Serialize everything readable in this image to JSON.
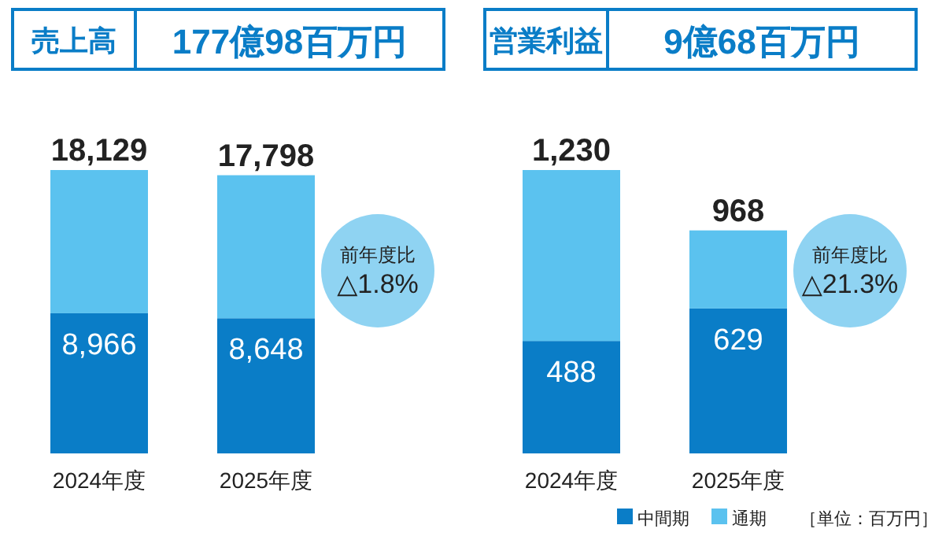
{
  "chart_data": [
    {
      "type": "bar",
      "stacked": true,
      "title": "売上高",
      "subtitle": "177億98百万円",
      "categories": [
        "2024年度",
        "2025年度"
      ],
      "series": [
        {
          "color": "#0a7dc7",
          "values": [
            8966,
            8648
          ],
          "value_labels": [
            "8,966",
            "8,648"
          ]
        },
        {
          "color": "#5bc2ef",
          "values": [
            9163,
            9150
          ],
          "value_labels": [
            null,
            null
          ]
        }
      ],
      "totals": [
        "18,129",
        "17,798"
      ],
      "annotations": [
        "前年度比 △1.8%"
      ],
      "legend": false
    },
    {
      "type": "bar",
      "stacked": true,
      "title": "営業利益",
      "subtitle": "9億68百万円",
      "categories": [
        "2024年度",
        "2025年度"
      ],
      "series": [
        {
          "name": "中間期",
          "color": "#0a7dc7",
          "values": [
            488,
            629
          ],
          "value_labels": [
            "488",
            "629"
          ]
        },
        {
          "name": "通期",
          "color": "#5bc2ef",
          "values": [
            742,
            339
          ],
          "value_labels": [
            null,
            null
          ]
        }
      ],
      "totals": [
        "1,230",
        "968"
      ],
      "annotations": [
        "前年度比 △21.3%",
        "［単位：百万円］"
      ],
      "legend": "bottom right"
    }
  ]
}
